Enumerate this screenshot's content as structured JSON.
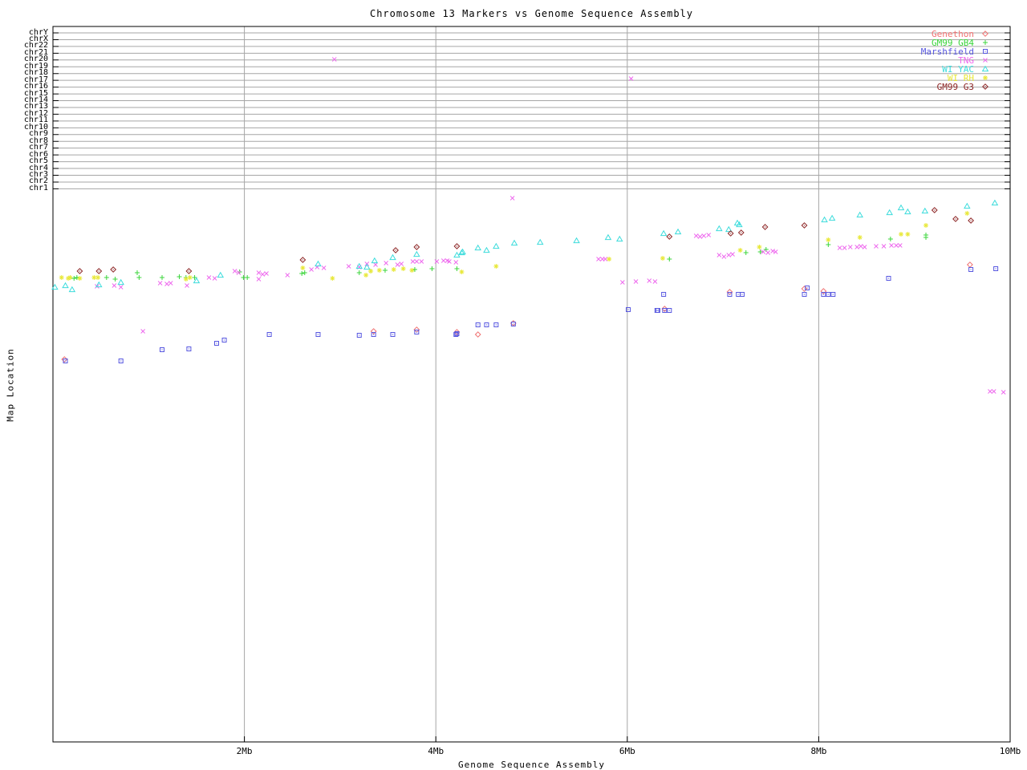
{
  "title": "Chromosome 13 Markers vs Genome Sequence Assembly",
  "x_axis_title": "Genome Sequence Assembly",
  "y_axis_title": "Map Location",
  "colors": {
    "background": "#ffffff",
    "border": "#000000",
    "grid": "#a6a6a6",
    "text": "#000000"
  },
  "legend": {
    "position": "top-right-inside",
    "items": [
      {
        "label": "Genethon",
        "marker": "open-diamond",
        "color": "#f07070"
      },
      {
        "label": "GM99 GB4",
        "marker": "plus",
        "color": "#3cd63c"
      },
      {
        "label": "Marshfield",
        "marker": "square-dot",
        "color": "#5858e0"
      },
      {
        "label": "TNG",
        "marker": "cross",
        "color": "#ee6aee"
      },
      {
        "label": "WI YAC",
        "marker": "open-triangle",
        "color": "#3cdcdc"
      },
      {
        "label": "WI RH",
        "marker": "asterisk",
        "color": "#e8e838"
      },
      {
        "label": "GM99 G3",
        "marker": "diamond-dot",
        "color": "#8b2222"
      }
    ]
  },
  "chart_data": {
    "type": "scatter",
    "title": "Chromosome 13 Markers vs Genome Sequence Assembly",
    "xlabel": "Genome Sequence Assembly",
    "ylabel": "Map Location",
    "grid": "major ticks only, gray lines",
    "legend_position": "top right inside plot",
    "x_axis": {
      "unit": "Mb",
      "range": [
        0,
        10
      ],
      "tick_labels": [
        "2Mb",
        "4Mb",
        "6Mb",
        "8Mb",
        "10Mb"
      ],
      "tick_values_mb": [
        2,
        4,
        6,
        8,
        10
      ]
    },
    "y_axis": {
      "label": "Map Location",
      "categories_top_to_bottom": [
        "chrY",
        "chrX",
        "chr22",
        "chr21",
        "chr20",
        "chr19",
        "chr18",
        "chr17",
        "chr16",
        "chr15",
        "chr14",
        "chr13",
        "chr12",
        "chr11",
        "chr10",
        "chr9",
        "chr8",
        "chr7",
        "chr6",
        "chr5",
        "chr4",
        "chr3",
        "chr2",
        "chr1"
      ],
      "note": "Top band is one gridline row per chromosome; the map-location scale below chr1 is unlabeled in the source image, so point y-values are recorded as screen pixels (plot top=33px, plot bottom=925px)."
    },
    "point_format": "[x_in_Mb, y_in_screen_px]",
    "series": [
      {
        "name": "Genethon",
        "marker": "open-diamond",
        "color": "#f07070",
        "points": [
          [
            0.12,
            448
          ],
          [
            3.35,
            413
          ],
          [
            3.8,
            411
          ],
          [
            4.22,
            414
          ],
          [
            4.44,
            417
          ],
          [
            4.81,
            403
          ],
          [
            6.39,
            385
          ],
          [
            7.07,
            364
          ],
          [
            7.85,
            360
          ],
          [
            8.05,
            363
          ],
          [
            9.58,
            330
          ]
        ]
      },
      {
        "name": "GM99 GB4",
        "marker": "plus",
        "color": "#3cd63c",
        "points": [
          [
            0.22,
            347
          ],
          [
            0.25,
            346
          ],
          [
            0.56,
            346
          ],
          [
            0.65,
            348
          ],
          [
            0.88,
            340
          ],
          [
            0.9,
            346
          ],
          [
            1.14,
            346
          ],
          [
            1.32,
            345
          ],
          [
            1.39,
            346
          ],
          [
            1.48,
            346
          ],
          [
            1.95,
            339
          ],
          [
            1.99,
            346
          ],
          [
            2.03,
            346
          ],
          [
            2.6,
            341
          ],
          [
            2.63,
            340
          ],
          [
            3.2,
            340
          ],
          [
            3.32,
            338
          ],
          [
            3.47,
            337
          ],
          [
            3.78,
            336
          ],
          [
            3.96,
            335
          ],
          [
            4.22,
            335
          ],
          [
            6.44,
            323
          ],
          [
            7.24,
            315
          ],
          [
            7.39,
            314
          ],
          [
            7.45,
            311
          ],
          [
            8.1,
            305
          ],
          [
            8.75,
            298
          ],
          [
            9.12,
            296
          ],
          [
            9.12,
            293
          ]
        ]
      },
      {
        "name": "Marshfield",
        "marker": "square-dot",
        "color": "#5858e0",
        "points": [
          [
            0.13,
            450
          ],
          [
            0.71,
            450
          ],
          [
            1.14,
            436
          ],
          [
            1.42,
            435
          ],
          [
            1.71,
            428
          ],
          [
            1.79,
            424
          ],
          [
            2.26,
            417
          ],
          [
            2.77,
            417
          ],
          [
            3.2,
            418
          ],
          [
            3.35,
            417
          ],
          [
            3.55,
            417
          ],
          [
            3.8,
            414
          ],
          [
            4.21,
            417
          ],
          [
            4.22,
            416
          ],
          [
            4.44,
            405
          ],
          [
            4.53,
            405
          ],
          [
            4.63,
            405
          ],
          [
            4.81,
            404
          ],
          [
            6.01,
            386
          ],
          [
            6.31,
            387
          ],
          [
            6.32,
            387
          ],
          [
            6.39,
            387
          ],
          [
            6.44,
            387
          ],
          [
            6.38,
            367
          ],
          [
            7.07,
            367
          ],
          [
            7.16,
            367
          ],
          [
            7.2,
            367
          ],
          [
            7.85,
            367
          ],
          [
            7.88,
            359
          ],
          [
            8.05,
            367
          ],
          [
            8.1,
            367
          ],
          [
            8.15,
            367
          ],
          [
            8.73,
            347
          ],
          [
            9.59,
            336
          ],
          [
            9.85,
            335
          ]
        ]
      },
      {
        "name": "TNG",
        "marker": "cross",
        "color": "#ee6aee",
        "points": [
          [
            0.46,
            357
          ],
          [
            0.64,
            356
          ],
          [
            0.71,
            358
          ],
          [
            0.94,
            413
          ],
          [
            1.12,
            353
          ],
          [
            1.19,
            354
          ],
          [
            1.23,
            353
          ],
          [
            1.4,
            356
          ],
          [
            1.63,
            346
          ],
          [
            1.69,
            347
          ],
          [
            1.9,
            338
          ],
          [
            1.94,
            340
          ],
          [
            2.15,
            348
          ],
          [
            2.15,
            340
          ],
          [
            2.19,
            342
          ],
          [
            2.23,
            341
          ],
          [
            2.45,
            343
          ],
          [
            2.7,
            336
          ],
          [
            2.76,
            333
          ],
          [
            2.83,
            334
          ],
          [
            2.94,
            74
          ],
          [
            3.09,
            332
          ],
          [
            3.2,
            333
          ],
          [
            3.28,
            329
          ],
          [
            3.37,
            330
          ],
          [
            3.48,
            328
          ],
          [
            3.6,
            330
          ],
          [
            3.64,
            329
          ],
          [
            3.76,
            326
          ],
          [
            3.8,
            326
          ],
          [
            3.85,
            326
          ],
          [
            4.01,
            326
          ],
          [
            4.08,
            325
          ],
          [
            4.12,
            325
          ],
          [
            4.14,
            326
          ],
          [
            4.21,
            327
          ],
          [
            4.8,
            247
          ],
          [
            5.7,
            323
          ],
          [
            5.74,
            323
          ],
          [
            5.77,
            323
          ],
          [
            5.95,
            352
          ],
          [
            6.04,
            98
          ],
          [
            6.09,
            351
          ],
          [
            6.23,
            350
          ],
          [
            6.29,
            351
          ],
          [
            6.72,
            294
          ],
          [
            6.76,
            295
          ],
          [
            6.8,
            294
          ],
          [
            6.85,
            293
          ],
          [
            6.96,
            318
          ],
          [
            7.01,
            320
          ],
          [
            7.06,
            318
          ],
          [
            7.1,
            317
          ],
          [
            7.42,
            314
          ],
          [
            7.47,
            315
          ],
          [
            7.52,
            313
          ],
          [
            7.55,
            314
          ],
          [
            8.22,
            309
          ],
          [
            8.27,
            309
          ],
          [
            8.33,
            308
          ],
          [
            8.4,
            308
          ],
          [
            8.44,
            307
          ],
          [
            8.48,
            308
          ],
          [
            8.6,
            307
          ],
          [
            8.68,
            307
          ],
          [
            8.76,
            306
          ],
          [
            8.81,
            306
          ],
          [
            8.85,
            306
          ],
          [
            9.79,
            488
          ],
          [
            9.83,
            488
          ],
          [
            9.93,
            489
          ]
        ]
      },
      {
        "name": "WI YAC",
        "marker": "open-triangle",
        "color": "#3cdcdc",
        "points": [
          [
            0.02,
            358
          ],
          [
            0.13,
            356
          ],
          [
            0.2,
            361
          ],
          [
            0.48,
            355
          ],
          [
            0.71,
            352
          ],
          [
            1.5,
            350
          ],
          [
            1.75,
            343
          ],
          [
            2.77,
            329
          ],
          [
            3.2,
            332
          ],
          [
            3.28,
            333
          ],
          [
            3.36,
            325
          ],
          [
            3.55,
            321
          ],
          [
            3.8,
            317
          ],
          [
            4.22,
            318
          ],
          [
            4.27,
            315
          ],
          [
            4.28,
            314
          ],
          [
            4.44,
            309
          ],
          [
            4.53,
            312
          ],
          [
            4.63,
            307
          ],
          [
            4.82,
            303
          ],
          [
            5.09,
            302
          ],
          [
            5.47,
            300
          ],
          [
            5.8,
            296
          ],
          [
            5.92,
            298
          ],
          [
            6.38,
            291
          ],
          [
            6.53,
            289
          ],
          [
            6.96,
            285
          ],
          [
            7.06,
            286
          ],
          [
            7.15,
            278
          ],
          [
            7.17,
            280
          ],
          [
            8.06,
            274
          ],
          [
            8.14,
            272
          ],
          [
            8.43,
            268
          ],
          [
            8.74,
            265
          ],
          [
            8.86,
            259
          ],
          [
            8.93,
            264
          ],
          [
            9.11,
            263
          ],
          [
            9.55,
            257
          ],
          [
            9.84,
            253
          ]
        ]
      },
      {
        "name": "WI RH",
        "marker": "asterisk",
        "color": "#e8e838",
        "points": [
          [
            0.09,
            346
          ],
          [
            0.16,
            347
          ],
          [
            0.18,
            346
          ],
          [
            0.28,
            347
          ],
          [
            0.43,
            346
          ],
          [
            0.47,
            346
          ],
          [
            1.39,
            348
          ],
          [
            1.43,
            346
          ],
          [
            2.61,
            334
          ],
          [
            2.92,
            347
          ],
          [
            3.27,
            343
          ],
          [
            3.32,
            338
          ],
          [
            3.41,
            337
          ],
          [
            3.56,
            336
          ],
          [
            3.66,
            335
          ],
          [
            3.75,
            337
          ],
          [
            4.27,
            339
          ],
          [
            4.63,
            332
          ],
          [
            5.81,
            323
          ],
          [
            6.37,
            322
          ],
          [
            7.18,
            312
          ],
          [
            7.38,
            308
          ],
          [
            8.1,
            299
          ],
          [
            8.43,
            296
          ],
          [
            8.86,
            292
          ],
          [
            8.93,
            292
          ],
          [
            9.12,
            281
          ],
          [
            9.55,
            266
          ]
        ]
      },
      {
        "name": "GM99 G3",
        "marker": "diamond-dot",
        "color": "#8b2222",
        "points": [
          [
            0.28,
            338
          ],
          [
            0.48,
            338
          ],
          [
            0.63,
            336
          ],
          [
            1.42,
            338
          ],
          [
            2.61,
            324
          ],
          [
            3.58,
            312
          ],
          [
            3.8,
            308
          ],
          [
            4.22,
            307
          ],
          [
            6.44,
            295
          ],
          [
            7.08,
            291
          ],
          [
            7.19,
            290
          ],
          [
            7.44,
            283
          ],
          [
            7.85,
            281
          ],
          [
            9.21,
            262
          ],
          [
            9.43,
            273
          ],
          [
            9.59,
            275
          ]
        ]
      }
    ]
  }
}
